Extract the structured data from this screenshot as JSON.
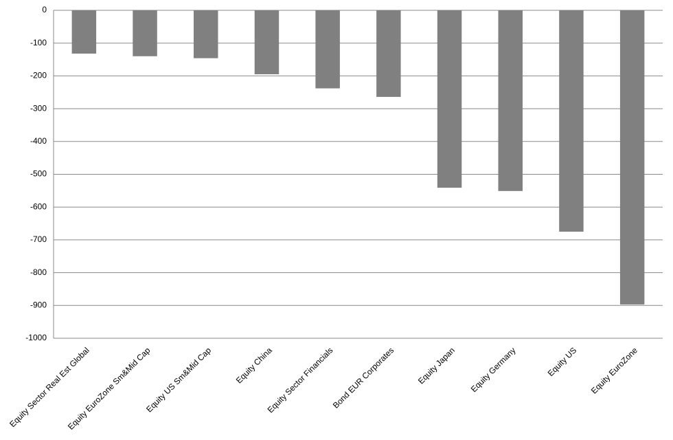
{
  "chart_data": {
    "type": "bar",
    "categories": [
      "Equity Sector Real Est Global",
      "Equity EuroZone Sm&Mid Cap",
      "Equity US Sm&Mid Cap",
      "Equity China",
      "Equity Sector Financials",
      "Bond EUR Corporates",
      "Equity Japan",
      "Equity Germany",
      "Equity US",
      "Equity EuroZone"
    ],
    "values": [
      -132,
      -140,
      -146,
      -195,
      -238,
      -264,
      -541,
      -551,
      -675,
      -897
    ],
    "color": "#808080",
    "ylim": [
      -1000,
      0
    ],
    "yticks": [
      0,
      -100,
      -200,
      -300,
      -400,
      -500,
      -600,
      -700,
      -800,
      -900,
      -1000
    ],
    "grid": true
  }
}
